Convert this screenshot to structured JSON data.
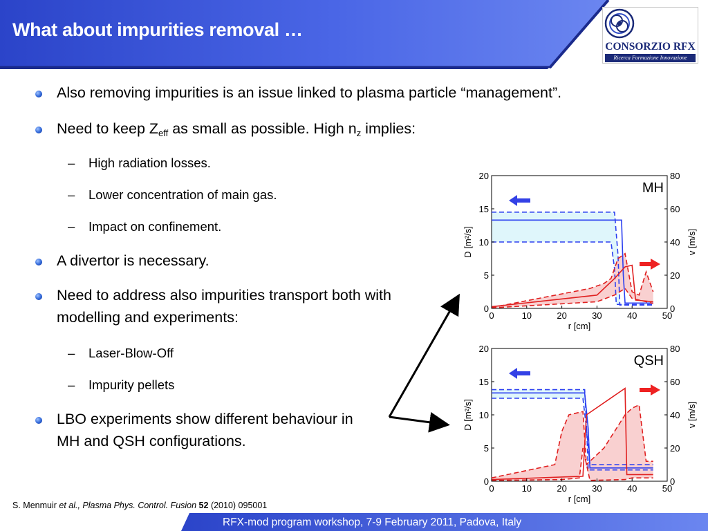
{
  "slide": {
    "title": "What about impurities removal …",
    "logo": {
      "name": "CONSORZIO RFX",
      "tagline": "Ricerca Formazione Innovazione",
      "emblem_icon": "consorzio-rfx-emblem"
    },
    "bullets": [
      {
        "text": "Also removing impurities is an issue linked to plasma particle “management”."
      },
      {
        "pre": "Need to keep Z",
        "sub1": "eff",
        "mid": " as small as possible. High n",
        "sub2": "z",
        "post": " implies:"
      },
      {
        "text": "A divertor is necessary."
      },
      {
        "line1": "Need to address also impurities transport both with",
        "line2": "modelling and experiments:"
      },
      {
        "line1": "LBO experiments show different behaviour in",
        "line2": "MH and QSH configurations."
      }
    ],
    "sub_bullets_1": [
      "High radiation losses.",
      "Lower concentration of main gas.",
      "Impact on confinement."
    ],
    "sub_bullets_2": [
      "Laser-Blow-Off",
      "Impurity pellets"
    ],
    "dash": "–",
    "citation": {
      "author": "S. Menmuir",
      "etal": " et al.,",
      "journal": " Plasma Phys. Control. Fusion",
      "volume": " 52",
      "rest": " (2010) 095001"
    },
    "footer": "RFX-mod program workshop, 7-9 February 2011, Padova, Italy"
  },
  "chart_data": [
    {
      "type": "line",
      "label": "MH",
      "xlabel": "r [cm]",
      "ylabel_left": "D [m²/s]",
      "ylabel_right": "v [m/s]",
      "xlim": [
        0,
        50
      ],
      "ylim_left": [
        0,
        20
      ],
      "ylim_right": [
        0,
        80
      ],
      "x_ticks": [
        "0",
        "10",
        "20",
        "30",
        "40",
        "50"
      ],
      "y_ticks_left": [
        "0",
        "5",
        "10",
        "15",
        "20"
      ],
      "y_ticks_right": [
        "0",
        "20",
        "40",
        "60",
        "80"
      ],
      "series": [
        {
          "color": "#2b3ff0",
          "style": "solid",
          "axis": "left",
          "x": [
            0,
            37,
            37.5,
            38,
            46
          ],
          "y": [
            13.3,
            13.3,
            5,
            0.8,
            0.8
          ]
        },
        {
          "color": "#2b3ff0",
          "style": "dashed",
          "axis": "left",
          "x": [
            0,
            35,
            36,
            36.5,
            46
          ],
          "y": [
            14.5,
            14.5,
            8,
            0.5,
            0.5
          ]
        },
        {
          "color": "#2b3ff0",
          "style": "dashed",
          "axis": "left",
          "x": [
            0,
            34,
            35,
            35.5,
            46
          ],
          "y": [
            10,
            10,
            6,
            0.6,
            0.6
          ]
        },
        {
          "color": "#e02020",
          "style": "solid",
          "axis": "right",
          "x": [
            0,
            30,
            35,
            38,
            40,
            41,
            46
          ],
          "y": [
            1,
            8,
            18,
            25,
            26,
            5,
            4
          ]
        },
        {
          "color": "#e02020",
          "style": "dashed",
          "axis": "right",
          "x": [
            0,
            28,
            32,
            34,
            36,
            38,
            40,
            42,
            44,
            46
          ],
          "y": [
            0.5,
            12,
            15,
            18,
            30,
            33,
            10,
            8,
            22,
            10
          ]
        },
        {
          "color": "#e02020",
          "style": "dashed",
          "axis": "right",
          "x": [
            0,
            30,
            35,
            38,
            40,
            42,
            46
          ],
          "y": [
            0.3,
            4,
            8,
            12,
            6,
            5,
            3
          ]
        }
      ]
    },
    {
      "type": "line",
      "label": "QSH",
      "xlabel": "r [cm]",
      "ylabel_left": "D [m²/s]",
      "ylabel_right": "v [m/s]",
      "xlim": [
        0,
        50
      ],
      "ylim_left": [
        0,
        20
      ],
      "ylim_right": [
        0,
        80
      ],
      "x_ticks": [
        "0",
        "10",
        "20",
        "30",
        "40",
        "50"
      ],
      "y_ticks_left": [
        "0",
        "5",
        "10",
        "15",
        "20"
      ],
      "y_ticks_right": [
        "0",
        "20",
        "40",
        "60",
        "80"
      ],
      "series": [
        {
          "color": "#2b3ff0",
          "style": "solid",
          "axis": "left",
          "x": [
            0,
            26.5,
            27.5,
            28,
            46
          ],
          "y": [
            13.3,
            13.3,
            8,
            2,
            2
          ]
        },
        {
          "color": "#2b3ff0",
          "style": "dashed",
          "axis": "left",
          "x": [
            0,
            26.5,
            27,
            27.5,
            46
          ],
          "y": [
            13.8,
            13.8,
            9,
            1.7,
            1.7
          ]
        },
        {
          "color": "#2b3ff0",
          "style": "dashed",
          "axis": "left",
          "x": [
            0,
            26,
            27,
            28,
            46
          ],
          "y": [
            12.5,
            12.5,
            8,
            2.5,
            2.5
          ]
        },
        {
          "color": "#e02020",
          "style": "solid",
          "axis": "right",
          "x": [
            0,
            26,
            27,
            38,
            38.5,
            46
          ],
          "y": [
            1,
            3,
            40,
            56,
            4,
            4
          ]
        },
        {
          "color": "#e02020",
          "style": "dashed",
          "axis": "right",
          "x": [
            0,
            18,
            20,
            22,
            26,
            27,
            32,
            38,
            40,
            42,
            44,
            46
          ],
          "y": [
            2,
            10,
            30,
            40,
            42,
            10,
            20,
            40,
            44,
            46,
            12,
            12
          ]
        },
        {
          "color": "#e02020",
          "style": "dashed",
          "axis": "right",
          "x": [
            0,
            20,
            25,
            26,
            28,
            38,
            40,
            46
          ],
          "y": [
            0.5,
            1,
            2,
            20,
            0.5,
            1,
            2,
            2
          ]
        }
      ]
    }
  ]
}
